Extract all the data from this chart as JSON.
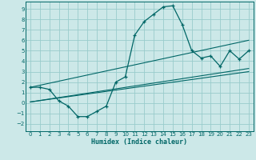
{
  "title": "",
  "xlabel": "Humidex (Indice chaleur)",
  "background_color": "#cce8e8",
  "grid_color": "#99cccc",
  "line_color": "#006666",
  "xlim": [
    -0.5,
    23.5
  ],
  "ylim": [
    -2.7,
    9.7
  ],
  "xticks": [
    0,
    1,
    2,
    3,
    4,
    5,
    6,
    7,
    8,
    9,
    10,
    11,
    12,
    13,
    14,
    15,
    16,
    17,
    18,
    19,
    20,
    21,
    22,
    23
  ],
  "yticks": [
    -2,
    -1,
    0,
    1,
    2,
    3,
    4,
    5,
    6,
    7,
    8,
    9
  ],
  "main_x": [
    0,
    1,
    2,
    3,
    4,
    5,
    6,
    7,
    8,
    9,
    10,
    11,
    12,
    13,
    14,
    15,
    16,
    17,
    18,
    19,
    20,
    21,
    22,
    23
  ],
  "main_y": [
    1.5,
    1.5,
    1.3,
    0.2,
    -0.3,
    -1.3,
    -1.3,
    -0.8,
    -0.3,
    2.0,
    2.5,
    6.5,
    7.8,
    8.5,
    9.2,
    9.3,
    7.5,
    5.0,
    4.3,
    4.5,
    3.5,
    5.0,
    4.2,
    5.0
  ],
  "line1_x": [
    0,
    23
  ],
  "line1_y": [
    1.5,
    6.0
  ],
  "line2_x": [
    0,
    23
  ],
  "line2_y": [
    0.1,
    3.3
  ],
  "line3_x": [
    0,
    23
  ],
  "line3_y": [
    0.1,
    3.0
  ]
}
